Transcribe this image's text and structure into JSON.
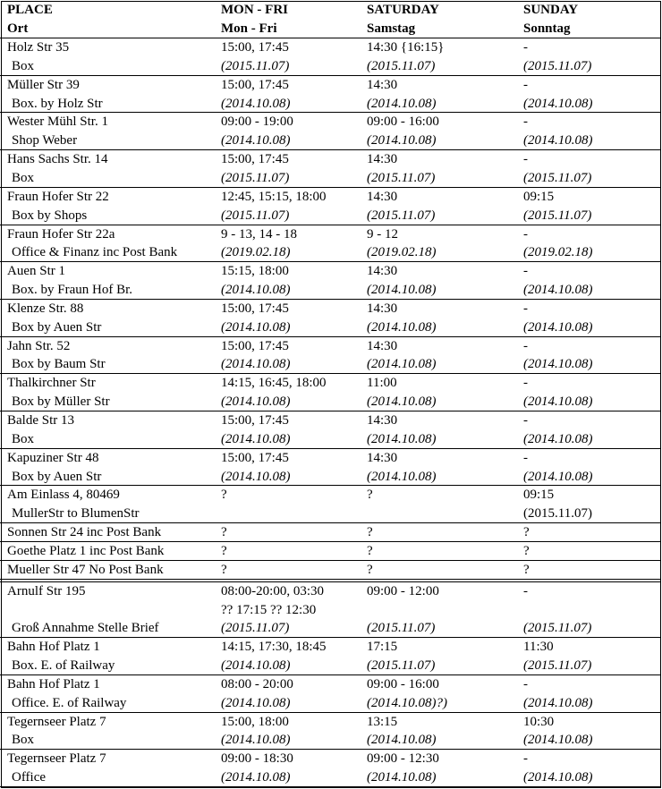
{
  "header": [
    [
      "PLACE",
      "Ort"
    ],
    [
      "MON - FRI",
      "Mon - Fri"
    ],
    [
      "SATURDAY",
      "Samstag"
    ],
    [
      "SUNDAY",
      "Sonntag"
    ]
  ],
  "sections": [
    [
      {
        "place": {
          "name": "Holz Str 35",
          "desc": "Box"
        },
        "mon": {
          "times": [
            "15:00, 17:45"
          ],
          "date": "(2015.11.07)"
        },
        "sat": {
          "times": [
            "14:30 {16:15}"
          ],
          "date": "(2015.11.07)"
        },
        "sun": {
          "times": [
            "-"
          ],
          "date": "(2015.11.07)"
        }
      },
      {
        "place": {
          "name": "Müller Str 39",
          "desc": "Box. by Holz Str"
        },
        "mon": {
          "times": [
            "15:00, 17:45"
          ],
          "date": "(2014.10.08)"
        },
        "sat": {
          "times": [
            "14:30"
          ],
          "date": "(2014.10.08)"
        },
        "sun": {
          "times": [
            "-"
          ],
          "date": "(2014.10.08)"
        }
      },
      {
        "place": {
          "name": "Wester Mühl Str. 1",
          "desc": "Shop Weber"
        },
        "mon": {
          "times": [
            "09:00 - 19:00"
          ],
          "date": "(2014.10.08)"
        },
        "sat": {
          "times": [
            "09:00 - 16:00"
          ],
          "date": "(2014.10.08)"
        },
        "sun": {
          "times": [
            "-"
          ],
          "date": "(2014.10.08)"
        }
      },
      {
        "place": {
          "name": "Hans Sachs Str. 14",
          "desc": "Box"
        },
        "mon": {
          "times": [
            "15:00, 17:45"
          ],
          "date": "(2015.11.07)"
        },
        "sat": {
          "times": [
            "14:30"
          ],
          "date": "(2015.11.07)"
        },
        "sun": {
          "times": [
            "-"
          ],
          "date": "(2015.11.07)"
        }
      },
      {
        "place": {
          "name": "Fraun Hofer Str 22",
          "desc": "Box by Shops"
        },
        "mon": {
          "times": [
            "12:45, 15:15, 18:00"
          ],
          "date": "(2015.11.07)"
        },
        "sat": {
          "times": [
            "14:30"
          ],
          "date": "(2015.11.07)"
        },
        "sun": {
          "times": [
            "09:15"
          ],
          "date": "(2015.11.07)"
        }
      },
      {
        "place": {
          "name": "Fraun Hofer Str 22a",
          "desc": "Office & Finanz inc Post Bank"
        },
        "mon": {
          "times": [
            "9 - 13, 14 - 18"
          ],
          "date": "(2019.02.18)"
        },
        "sat": {
          "times": [
            "9 - 12"
          ],
          "date": "(2019.02.18)"
        },
        "sun": {
          "times": [
            "-"
          ],
          "date": "(2019.02.18)"
        }
      },
      {
        "place": {
          "name": "Auen Str 1",
          "desc": "Box. by Fraun Hof Br."
        },
        "mon": {
          "times": [
            "15:15, 18:00"
          ],
          "date": "(2014.10.08)"
        },
        "sat": {
          "times": [
            "14:30"
          ],
          "date": "(2014.10.08)"
        },
        "sun": {
          "times": [
            "-"
          ],
          "date": "(2014.10.08)"
        }
      },
      {
        "place": {
          "name": "Klenze Str. 88",
          "desc": "Box by Auen Str"
        },
        "mon": {
          "times": [
            "15:00, 17:45"
          ],
          "date": "(2014.10.08)"
        },
        "sat": {
          "times": [
            "14:30"
          ],
          "date": "(2014.10.08)"
        },
        "sun": {
          "times": [
            "-"
          ],
          "date": "(2014.10.08)"
        }
      },
      {
        "place": {
          "name": "Jahn Str. 52",
          "desc": "Box by Baum Str"
        },
        "mon": {
          "times": [
            "15:00, 17:45"
          ],
          "date": "(2014.10.08)"
        },
        "sat": {
          "times": [
            "14:30"
          ],
          "date": "(2014.10.08)"
        },
        "sun": {
          "times": [
            "-"
          ],
          "date": "(2014.10.08)"
        }
      },
      {
        "place": {
          "name": "Thalkirchner Str",
          "desc": "Box by Müller Str"
        },
        "mon": {
          "times": [
            "14:15, 16:45, 18:00"
          ],
          "date": "(2014.10.08)"
        },
        "sat": {
          "times": [
            "11:00"
          ],
          "date": "(2014.10.08)"
        },
        "sun": {
          "times": [
            "-"
          ],
          "date": "(2014.10.08)"
        }
      },
      {
        "place": {
          "name": "Balde Str 13",
          "desc": "Box"
        },
        "mon": {
          "times": [
            "15:00, 17:45"
          ],
          "date": "(2014.10.08)"
        },
        "sat": {
          "times": [
            "14:30"
          ],
          "date": "(2014.10.08)"
        },
        "sun": {
          "times": [
            "-"
          ],
          "date": "(2014.10.08)"
        }
      },
      {
        "place": {
          "name": "Kapuziner Str 48",
          "desc": "Box by Auen Str"
        },
        "mon": {
          "times": [
            "15:00, 17:45"
          ],
          "date": "(2014.10.08)"
        },
        "sat": {
          "times": [
            "14:30"
          ],
          "date": "(2014.10.08)"
        },
        "sun": {
          "times": [
            "-"
          ],
          "date": "(2014.10.08)"
        }
      },
      {
        "place": {
          "name": "Am Einlass 4, 80469",
          "desc": "MullerStr to BlumenStr"
        },
        "mon": {
          "times": [
            "?"
          ]
        },
        "sat": {
          "times": [
            "?"
          ]
        },
        "sun": {
          "times": [
            "09:15",
            "(2015.11.07)"
          ]
        }
      },
      {
        "place": {
          "name": "Sonnen Str 24 inc Post Bank"
        },
        "mon": {
          "times": [
            "?"
          ]
        },
        "sat": {
          "times": [
            "?"
          ]
        },
        "sun": {
          "times": [
            "?"
          ]
        }
      },
      {
        "place": {
          "name": "Goethe Platz 1 inc Post Bank"
        },
        "mon": {
          "times": [
            "?"
          ]
        },
        "sat": {
          "times": [
            "?"
          ]
        },
        "sun": {
          "times": [
            "?"
          ]
        }
      },
      {
        "place": {
          "name": "Mueller Str 47 No Post Bank"
        },
        "mon": {
          "times": [
            "?"
          ]
        },
        "sat": {
          "times": [
            "?"
          ]
        },
        "sun": {
          "times": [
            "?"
          ]
        }
      }
    ],
    [
      {
        "place": {
          "name": "Arnulf Str 195",
          "desc": "Groß Annahme Stelle Brief"
        },
        "mon": {
          "times": [
            "08:00-20:00, 03:30",
            "?? 17:15 ?? 12:30"
          ],
          "date": "(2015.11.07)"
        },
        "sat": {
          "times": [
            "09:00 - 12:00"
          ],
          "date": "(2015.11.07)"
        },
        "sun": {
          "times": [
            "-"
          ],
          "date": "(2015.11.07)"
        }
      },
      {
        "place": {
          "name": "Bahn Hof Platz 1",
          "desc": "Box. E. of Railway"
        },
        "mon": {
          "times": [
            "14:15, 17:30, 18:45"
          ],
          "date": "(2014.10.08)"
        },
        "sat": {
          "times": [
            "17:15"
          ],
          "date": "(2015.11.07)"
        },
        "sun": {
          "times": [
            "11:30"
          ],
          "date": "(2015.11.07)"
        }
      },
      {
        "place": {
          "name": "Bahn Hof Platz 1",
          "desc": "Office. E. of Railway"
        },
        "mon": {
          "times": [
            "08:00 - 20:00"
          ],
          "date": "(2014.10.08)"
        },
        "sat": {
          "times": [
            "09:00 - 16:00"
          ],
          "date": "(2014.10.08)?)"
        },
        "sun": {
          "times": [
            "-"
          ],
          "date": "(2014.10.08)"
        }
      },
      {
        "place": {
          "name": "Tegernseer Platz 7",
          "desc": "Box"
        },
        "mon": {
          "times": [
            "15:00, 18:00"
          ],
          "date": "(2014.10.08)"
        },
        "sat": {
          "times": [
            "13:15"
          ],
          "date": "(2014.10.08)"
        },
        "sun": {
          "times": [
            "10:30"
          ],
          "date": "(2014.10.08)"
        }
      },
      {
        "place": {
          "name": "Tegernseer Platz 7",
          "desc": "Office"
        },
        "mon": {
          "times": [
            "09:00 - 18:30"
          ],
          "date": "(2014.10.08)"
        },
        "sat": {
          "times": [
            "09:00 - 12:30"
          ],
          "date": "(2014.10.08)"
        },
        "sun": {
          "times": [
            "-"
          ],
          "date": "(2014.10.08)"
        }
      }
    ]
  ]
}
